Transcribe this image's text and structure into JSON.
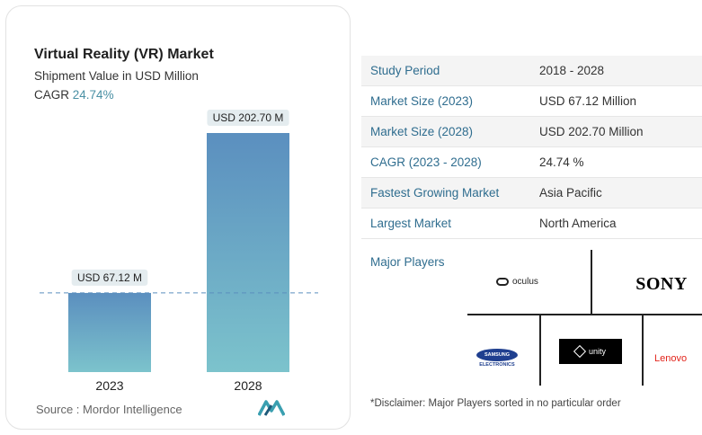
{
  "chart_data": {
    "type": "bar",
    "title": "Virtual Reality (VR) Market",
    "subtitle": "Shipment Value in USD Million",
    "cagr_label": "CAGR",
    "cagr_value": "24.74%",
    "categories": [
      "2023",
      "2028"
    ],
    "values": [
      67.12,
      202.7
    ],
    "data_labels": [
      "USD 67.12 M",
      "USD 202.70 M"
    ],
    "ylim": [
      0,
      202.7
    ],
    "grid": false,
    "reference_line_at_value": 67.12,
    "bar_gradient": [
      "#5b8fbf",
      "#7cc3cc"
    ],
    "source": "Source : Mordor Intelligence"
  },
  "summary_table": [
    {
      "label": "Study Period",
      "value": "2018 - 2028"
    },
    {
      "label": "Market Size (2023)",
      "value": "USD 67.12 Million"
    },
    {
      "label": "Market Size (2028)",
      "value": "USD 202.70 Million"
    },
    {
      "label": "CAGR (2023 - 2028)",
      "value": "24.74 %"
    },
    {
      "label": "Fastest Growing Market",
      "value": "Asia Pacific"
    },
    {
      "label": "Largest Market",
      "value": "North America"
    }
  ],
  "major_players": {
    "title": "Major Players",
    "logos": {
      "oculus": "oculus",
      "sony": "SONY",
      "unity": "unity",
      "samsung": "SAMSUNG",
      "samsung_sub": "ELECTRONICS",
      "lenovo": "Lenovo"
    },
    "disclaimer": "*Disclaimer: Major Players sorted in no particular order"
  },
  "colors": {
    "accent": "#4a90a4",
    "key_text": "#2f6d8f",
    "label_bg": "#e4ecef"
  }
}
